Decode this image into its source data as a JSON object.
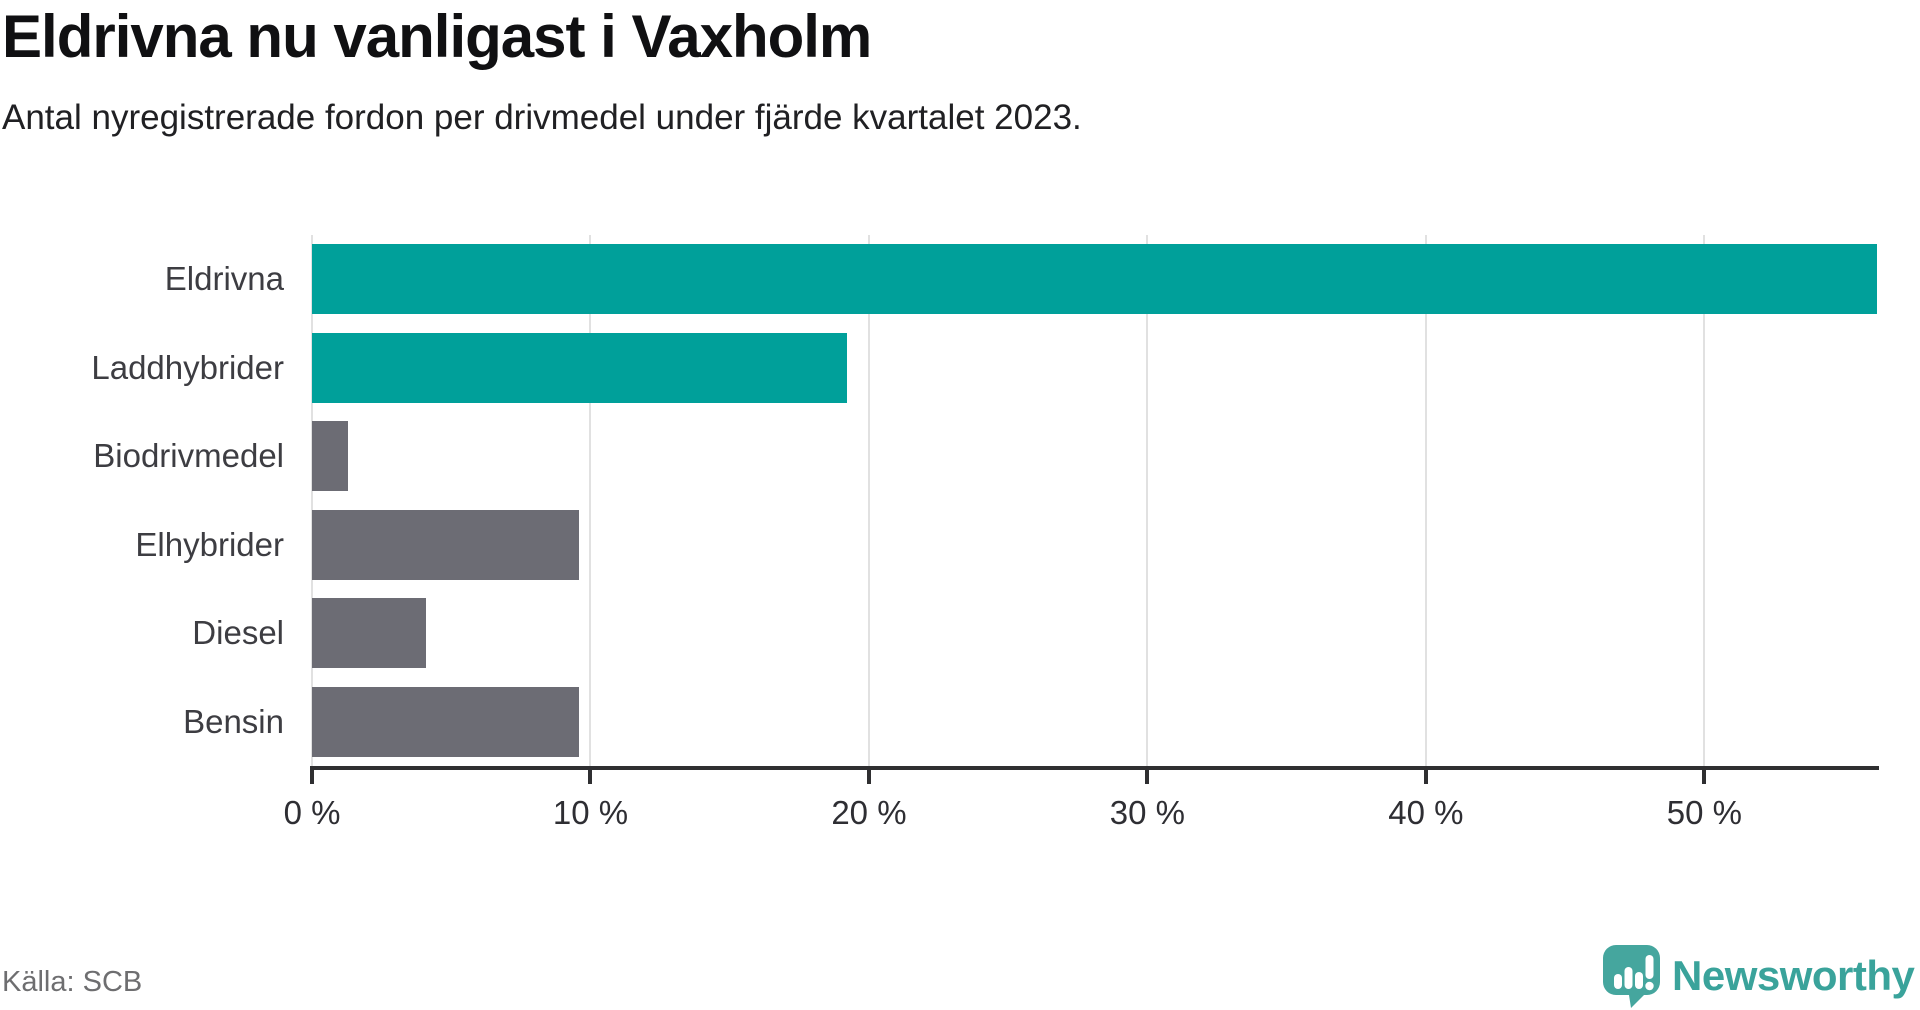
{
  "header": {
    "title": "Eldrivna nu vanligast i Vaxholm",
    "subtitle": "Antal nyregistrerade fordon per drivmedel under fjärde kvartalet 2023."
  },
  "chart_data": {
    "type": "bar",
    "orientation": "horizontal",
    "title": "Eldrivna nu vanligast i Vaxholm",
    "categories": [
      "Eldrivna",
      "Laddhybrider",
      "Biodrivmedel",
      "Elhybrider",
      "Diesel",
      "Bensin"
    ],
    "values": [
      56.2,
      19.2,
      1.3,
      9.6,
      4.1,
      9.6
    ],
    "unit": "%",
    "bar_colors": [
      "#00a09a",
      "#00a09a",
      "#6c6c74",
      "#6c6c74",
      "#6c6c74",
      "#6c6c74"
    ],
    "xlim": [
      0,
      56.2
    ],
    "x_ticks": [
      {
        "value": 0,
        "label": "0 %"
      },
      {
        "value": 10,
        "label": "10 %"
      },
      {
        "value": 20,
        "label": "20 %"
      },
      {
        "value": 30,
        "label": "30 %"
      },
      {
        "value": 40,
        "label": "40 %"
      },
      {
        "value": 50,
        "label": "50 %"
      }
    ],
    "grid": "vertical",
    "legend": "none"
  },
  "footer": {
    "source": "Källa: SCB",
    "brand": "Newsworthy"
  },
  "colors": {
    "accent_teal": "#00a09a",
    "bar_gray": "#6c6c74",
    "gridline": "#e1e1e1",
    "axis": "#2f2f31",
    "logo_teal": "#45a69e",
    "brand_text_teal": "#3aa39b"
  }
}
